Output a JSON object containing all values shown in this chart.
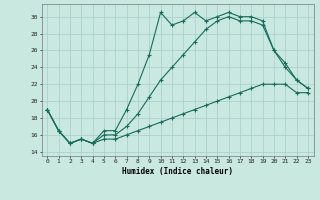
{
  "title": "",
  "xlabel": "Humidex (Indice chaleur)",
  "ylabel": "",
  "xlim": [
    -0.5,
    23.5
  ],
  "ylim": [
    13.5,
    31.5
  ],
  "xticks": [
    0,
    1,
    2,
    3,
    4,
    5,
    6,
    7,
    8,
    9,
    10,
    11,
    12,
    13,
    14,
    15,
    16,
    17,
    18,
    19,
    20,
    21,
    22,
    23
  ],
  "yticks": [
    14,
    16,
    18,
    20,
    22,
    24,
    26,
    28,
    30
  ],
  "bg_color": "#c8e8e0",
  "line_color": "#1a6b5a",
  "grid_color": "#a8cccc",
  "line1_x": [
    0,
    1,
    2,
    3,
    4,
    5,
    6,
    7,
    8,
    9,
    10,
    11,
    12,
    13,
    14,
    15,
    16,
    17,
    18,
    19,
    20,
    21,
    22,
    23
  ],
  "line1_y": [
    19.0,
    16.5,
    15.0,
    15.5,
    15.0,
    16.5,
    16.5,
    19.0,
    22.0,
    25.5,
    30.5,
    29.0,
    29.5,
    30.5,
    29.5,
    30.0,
    30.5,
    30.0,
    30.0,
    29.5,
    26.0,
    24.0,
    22.5,
    21.5
  ],
  "line2_x": [
    0,
    1,
    2,
    3,
    4,
    5,
    6,
    7,
    8,
    9,
    10,
    11,
    12,
    13,
    14,
    15,
    16,
    17,
    18,
    19,
    20,
    21,
    22,
    23
  ],
  "line2_y": [
    19.0,
    16.5,
    15.0,
    15.5,
    15.0,
    16.0,
    16.0,
    17.0,
    18.5,
    20.5,
    22.5,
    24.0,
    25.5,
    27.0,
    28.5,
    29.5,
    30.0,
    29.5,
    29.5,
    29.0,
    26.0,
    24.5,
    22.5,
    21.5
  ],
  "line3_x": [
    0,
    1,
    2,
    3,
    4,
    5,
    6,
    7,
    8,
    9,
    10,
    11,
    12,
    13,
    14,
    15,
    16,
    17,
    18,
    19,
    20,
    21,
    22,
    23
  ],
  "line3_y": [
    19.0,
    16.5,
    15.0,
    15.5,
    15.0,
    15.5,
    15.5,
    16.0,
    16.5,
    17.0,
    17.5,
    18.0,
    18.5,
    19.0,
    19.5,
    20.0,
    20.5,
    21.0,
    21.5,
    22.0,
    22.0,
    22.0,
    21.0,
    21.0
  ],
  "lw": 0.8,
  "ms": 2.5
}
